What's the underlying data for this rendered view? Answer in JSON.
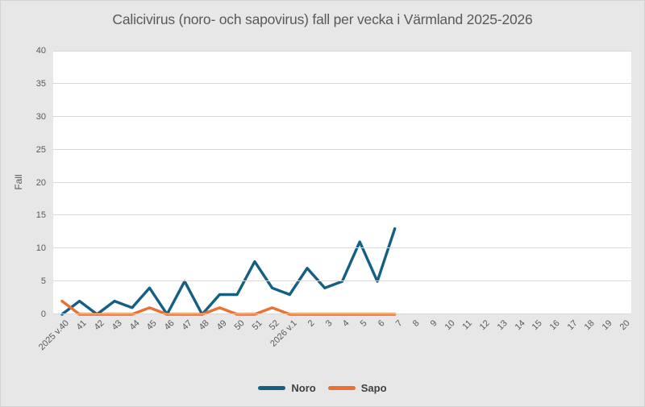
{
  "chart_data": {
    "type": "line",
    "title": "Calicivirus (noro- och sapovirus) fall per vecka i Värmland 2025-2026",
    "xlabel": "",
    "ylabel": "Fall",
    "categories": [
      "2025 v.40",
      "41",
      "42",
      "43",
      "44",
      "45",
      "46",
      "47",
      "48",
      "49",
      "50",
      "51",
      "52",
      "2026 v.1",
      "2",
      "3",
      "4",
      "5",
      "6",
      "7",
      "8",
      "9",
      "10",
      "11",
      "12",
      "13",
      "14",
      "15",
      "16",
      "17",
      "18",
      "19",
      "20"
    ],
    "series": [
      {
        "name": "Noro",
        "color": "#156082",
        "values": [
          0,
          2,
          0,
          2,
          1,
          4,
          0,
          5,
          0,
          3,
          3,
          8,
          4,
          3,
          7,
          4,
          5,
          11,
          5,
          13
        ]
      },
      {
        "name": "Sapo",
        "color": "#E97132",
        "values": [
          2,
          0,
          0,
          0,
          0,
          1,
          0,
          0,
          0,
          1,
          0,
          0,
          1,
          0,
          0,
          0,
          0,
          0,
          0,
          0
        ]
      }
    ],
    "ylim": [
      0,
      40
    ],
    "ytick_step": 5,
    "grid": true,
    "legend_position": "bottom"
  },
  "colors": {
    "background": "#E7E7E7",
    "plot_background": "#FFFFFF",
    "gridline": "#D9D9D9",
    "text": "#595959",
    "legend_text": "#3F3F3F",
    "noro_line": "#156082",
    "sapo_line": "#E97132"
  }
}
